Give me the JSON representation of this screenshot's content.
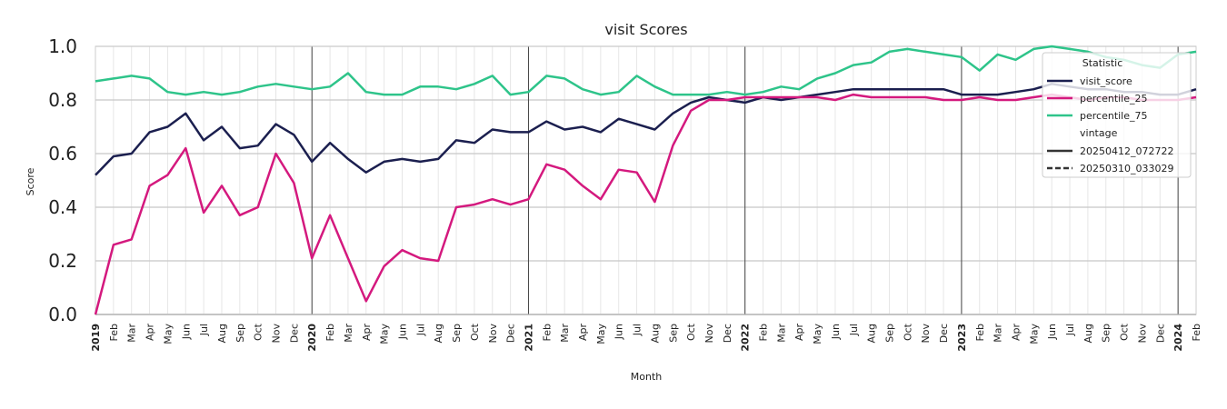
{
  "chart_data": {
    "type": "line",
    "title": "visit Scores",
    "xlabel": "Month",
    "ylabel": "Score",
    "ylim": [
      0.0,
      1.0
    ],
    "yticks": [
      "0.0",
      "0.2",
      "0.4",
      "0.6",
      "0.8",
      "1.0"
    ],
    "x_start": "2019-01",
    "x_end": "2024-02",
    "month_labels": [
      "2019",
      "Feb",
      "Mar",
      "Apr",
      "May",
      "Jun",
      "Jul",
      "Aug",
      "Sep",
      "Oct",
      "Nov",
      "Dec",
      "2020",
      "Feb",
      "Mar",
      "Apr",
      "May",
      "Jun",
      "Jul",
      "Aug",
      "Sep",
      "Oct",
      "Nov",
      "Dec",
      "2021",
      "Feb",
      "Mar",
      "Apr",
      "May",
      "Jun",
      "Jul",
      "Aug",
      "Sep",
      "Oct",
      "Nov",
      "Dec",
      "2022",
      "Feb",
      "Mar",
      "Apr",
      "May",
      "Jun",
      "Jul",
      "Aug",
      "Sep",
      "Oct",
      "Nov",
      "Dec",
      "2023",
      "Feb",
      "Mar",
      "Apr",
      "May",
      "Jun",
      "Jul",
      "Aug",
      "Sep",
      "Oct",
      "Nov",
      "Dec",
      "2024",
      "Feb"
    ],
    "grid": true,
    "legend_position": "top-right",
    "legend": {
      "statistic_title": "Statistic",
      "vintage_title": "vintage",
      "vintages": [
        {
          "name": "20250412_072722",
          "style": "solid"
        },
        {
          "name": "20250310_033029",
          "style": "dashed"
        }
      ]
    },
    "series": [
      {
        "name": "visit_score",
        "color": "#1b1f4f",
        "values": [
          0.52,
          0.59,
          0.6,
          0.68,
          0.7,
          0.75,
          0.65,
          0.7,
          0.62,
          0.63,
          0.71,
          0.67,
          0.57,
          0.64,
          0.58,
          0.53,
          0.57,
          0.58,
          0.57,
          0.58,
          0.65,
          0.64,
          0.69,
          0.68,
          0.68,
          0.72,
          0.69,
          0.7,
          0.68,
          0.73,
          0.71,
          0.69,
          0.75,
          0.79,
          0.81,
          0.8,
          0.79,
          0.81,
          0.8,
          0.81,
          0.82,
          0.83,
          0.84,
          0.84,
          0.84,
          0.84,
          0.84,
          0.84,
          0.82,
          0.82,
          0.82,
          0.83,
          0.84,
          0.86,
          0.85,
          0.84,
          0.84,
          0.83,
          0.83,
          0.82,
          0.82,
          0.84
        ]
      },
      {
        "name": "percentile_25",
        "color": "#d4197e",
        "values": [
          0.0,
          0.26,
          0.28,
          0.48,
          0.52,
          0.62,
          0.38,
          0.48,
          0.37,
          0.4,
          0.6,
          0.49,
          0.21,
          0.37,
          0.21,
          0.05,
          0.18,
          0.24,
          0.21,
          0.2,
          0.4,
          0.41,
          0.43,
          0.41,
          0.43,
          0.56,
          0.54,
          0.48,
          0.43,
          0.54,
          0.53,
          0.42,
          0.63,
          0.76,
          0.8,
          0.8,
          0.81,
          0.81,
          0.81,
          0.81,
          0.81,
          0.8,
          0.82,
          0.81,
          0.81,
          0.81,
          0.81,
          0.8,
          0.8,
          0.81,
          0.8,
          0.8,
          0.81,
          0.82,
          0.81,
          0.8,
          0.81,
          0.81,
          0.8,
          0.8,
          0.8,
          0.81
        ]
      },
      {
        "name": "percentile_75",
        "color": "#2ec48a",
        "values": [
          0.87,
          0.88,
          0.89,
          0.88,
          0.83,
          0.82,
          0.83,
          0.82,
          0.83,
          0.85,
          0.86,
          0.85,
          0.84,
          0.85,
          0.9,
          0.83,
          0.82,
          0.82,
          0.85,
          0.85,
          0.84,
          0.86,
          0.89,
          0.82,
          0.83,
          0.89,
          0.88,
          0.84,
          0.82,
          0.83,
          0.89,
          0.85,
          0.82,
          0.82,
          0.82,
          0.83,
          0.82,
          0.83,
          0.85,
          0.84,
          0.88,
          0.9,
          0.93,
          0.94,
          0.98,
          0.99,
          0.98,
          0.97,
          0.96,
          0.91,
          0.97,
          0.95,
          0.99,
          1.0,
          0.99,
          0.98,
          0.96,
          0.95,
          0.93,
          0.92,
          0.97,
          0.98
        ]
      }
    ]
  }
}
